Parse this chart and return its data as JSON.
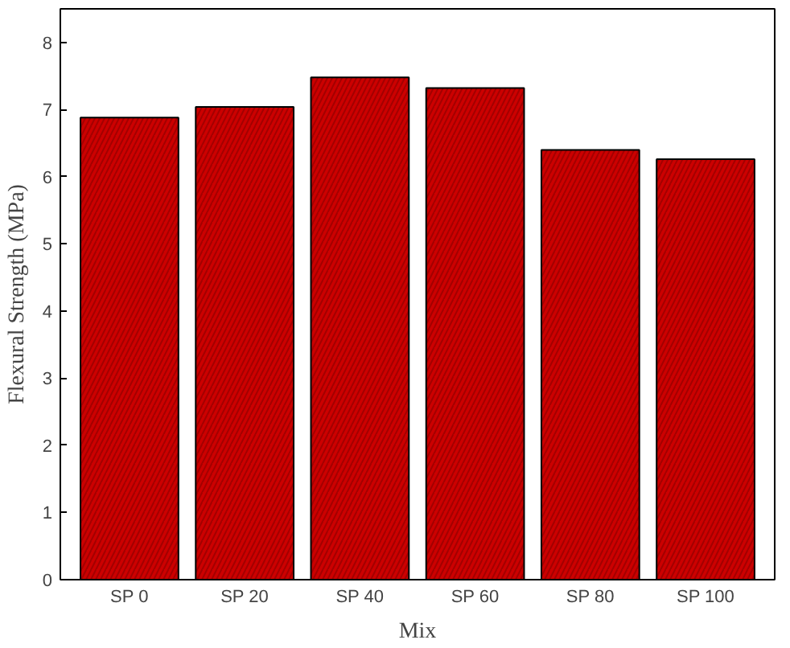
{
  "chart_data": {
    "type": "bar",
    "xlabel": "Mix",
    "ylabel": "Flexural Strength (MPa)",
    "categories": [
      "SP 0",
      "SP 20",
      "SP 40",
      "SP 60",
      "SP 80",
      "SP 100"
    ],
    "values": [
      6.88,
      7.04,
      7.48,
      7.32,
      6.4,
      6.26
    ],
    "color": "#cc0000",
    "ylim": [
      0,
      8.5
    ],
    "yticks": [
      0,
      1,
      2,
      3,
      4,
      5,
      6,
      7,
      8
    ],
    "grid": false
  }
}
